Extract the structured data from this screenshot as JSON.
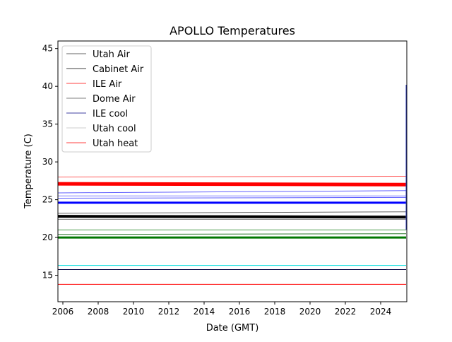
{
  "chart_data": {
    "type": "line",
    "title": "APOLLO Temperatures",
    "xlabel": "Date (GMT)",
    "ylabel": "Temperature (C)",
    "xlim": [
      2005.72,
      2025.48
    ],
    "ylim": [
      11.5,
      46.0
    ],
    "xticks": [
      2006,
      2008,
      2010,
      2012,
      2014,
      2016,
      2018,
      2020,
      2022,
      2024
    ],
    "yticks": [
      15,
      20,
      25,
      30,
      35,
      40,
      45
    ],
    "grid": false,
    "legend_position": "top-left",
    "legend": [
      {
        "name": "Utah Air",
        "color": "#333333"
      },
      {
        "name": "Cabinet Air",
        "color": "#000000"
      },
      {
        "name": "ILE Air",
        "color": "#ff0000"
      },
      {
        "name": "Dome Air",
        "color": "#555555"
      },
      {
        "name": "ILE cool",
        "color": "#000080"
      },
      {
        "name": "Utah cool",
        "color": "#bbbbbb"
      },
      {
        "name": "Utah heat",
        "color": "#ff0000"
      }
    ],
    "series": [
      {
        "name": "red-upper",
        "y": [
          28.0,
          28.1
        ],
        "color": "#ff6060",
        "width": 1
      },
      {
        "name": "red-main",
        "y": [
          27.1,
          27.0
        ],
        "color": "#ff0000",
        "width": 5
      },
      {
        "name": "blue-upper",
        "y": [
          25.9,
          26.2
        ],
        "color": "#6060ff",
        "width": 1
      },
      {
        "name": "blue-mid",
        "y": [
          25.5,
          25.5
        ],
        "color": "#8080ff",
        "width": 1
      },
      {
        "name": "blue-low",
        "y": [
          25.2,
          25.3
        ],
        "color": "#6060ff",
        "width": 1
      },
      {
        "name": "blue-main",
        "y": [
          24.6,
          24.6
        ],
        "color": "#0000ff",
        "width": 3
      },
      {
        "name": "gray-upper",
        "y": [
          23.2,
          23.4
        ],
        "color": "#666666",
        "width": 1
      },
      {
        "name": "black-main",
        "y": [
          22.8,
          22.7
        ],
        "color": "#000000",
        "width": 4
      },
      {
        "name": "gray-lower",
        "y": [
          22.4,
          22.4
        ],
        "color": "#777777",
        "width": 1
      },
      {
        "name": "green-upper",
        "y": [
          21.0,
          21.0
        ],
        "color": "#4a9a4a",
        "width": 1
      },
      {
        "name": "green-mid",
        "y": [
          20.4,
          20.5
        ],
        "color": "#2a7a2a",
        "width": 1
      },
      {
        "name": "green-main",
        "y": [
          20.0,
          20.0
        ],
        "color": "#007700",
        "width": 3
      },
      {
        "name": "cyan",
        "y": [
          16.3,
          16.3
        ],
        "color": "#00dddd",
        "width": 1
      },
      {
        "name": "navy",
        "y": [
          15.75,
          15.75
        ],
        "color": "#000040",
        "width": 1
      },
      {
        "name": "red-low",
        "y": [
          13.8,
          13.8
        ],
        "color": "#ff0000",
        "width": 1
      }
    ],
    "spike": {
      "x": 2025.45,
      "y": [
        21.0,
        40.2
      ]
    }
  }
}
